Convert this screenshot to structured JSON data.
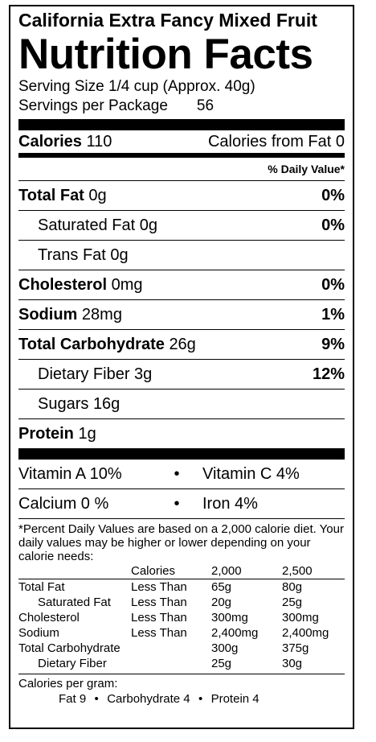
{
  "product_name": "California Extra Fancy Mixed Fruit",
  "title": "Nutrition Facts",
  "serving_size": "Serving Size 1/4 cup (Approx. 40g)",
  "servings_label": "Servings per Package",
  "servings_count": "56",
  "calories": {
    "label": "Calories",
    "value": "110",
    "from_fat": "Calories from Fat 0"
  },
  "dv_header": "% Daily Value*",
  "nutrients": [
    {
      "name": "Total Fat",
      "amount": "0g",
      "dv": "0%"
    },
    {
      "name": "Saturated Fat",
      "amount": "0g",
      "dv": "0%"
    },
    {
      "name": "Trans Fat",
      "amount": "0g",
      "dv": ""
    },
    {
      "name": "Cholesterol",
      "amount": "0mg",
      "dv": "0%"
    },
    {
      "name": "Sodium",
      "amount": "28mg",
      "dv": "1%"
    },
    {
      "name": "Total Carbohydrate",
      "amount": "26g",
      "dv": "9%"
    },
    {
      "name": "Dietary Fiber",
      "amount": "3g",
      "dv": "12%"
    },
    {
      "name": "Sugars",
      "amount": "16g",
      "dv": ""
    },
    {
      "name": "Protein",
      "amount": "1g",
      "dv": ""
    }
  ],
  "vitamins": [
    {
      "left": "Vitamin A 10%",
      "sep": "•",
      "right": "Vitamin C 4%"
    },
    {
      "left": "Calcium 0 %",
      "sep": "•",
      "right": "Iron 4%"
    }
  ],
  "footnote": "*Percent Daily Values are based on a 2,000 calorie diet. Your daily values may be higher or lower depending on your calorie needs:",
  "footnote_table": {
    "header": [
      "",
      "Calories",
      "2,000",
      "2,500"
    ],
    "rows": [
      [
        "Total Fat",
        "Less Than",
        "65g",
        "80g"
      ],
      [
        "Saturated Fat",
        "Less Than",
        "20g",
        "25g"
      ],
      [
        "Cholesterol",
        "Less Than",
        "300mg",
        "300mg"
      ],
      [
        "Sodium",
        "Less Than",
        "2,400mg",
        "2,400mg"
      ],
      [
        "Total Carbohydrate",
        "",
        "300g",
        "375g"
      ],
      [
        "Dietary Fiber",
        "",
        "25g",
        "30g"
      ]
    ]
  },
  "calories_per_gram": {
    "label": "Calories per gram:",
    "fat": "Fat 9",
    "sep": "•",
    "carb": "Carbohydrate 4",
    "protein": "Protein 4"
  }
}
